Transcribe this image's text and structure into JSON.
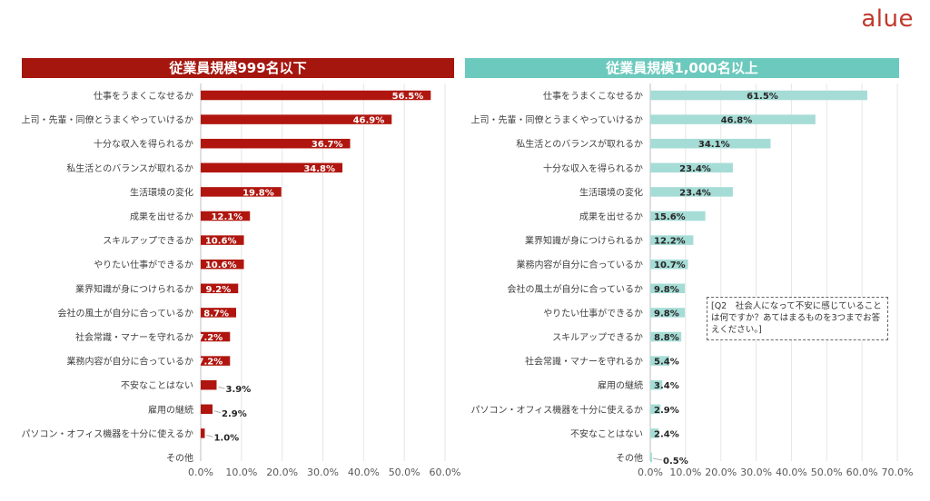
{
  "brand": {
    "logo_text": "alue",
    "color": "#c0392b"
  },
  "note": "[Q2　社会人になって不安に感じていることは何ですか？あてはまるものを3つまでお答えください。]",
  "chart_data": [
    {
      "type": "bar",
      "orientation": "horizontal",
      "title": "従業員規模999名以下",
      "title_color": "#a5160f",
      "bar_color": "#b0160f",
      "grid": true,
      "xlim": [
        0,
        60
      ],
      "ticks": [
        "0.0%",
        "10.0%",
        "20.0%",
        "30.0%",
        "40.0%",
        "50.0%",
        "60.0%"
      ],
      "categories": [
        "仕事をうまくこなせるか",
        "上司・先輩・同僚とうまくやっていけるか",
        "十分な収入を得られるか",
        "私生活とのバランスが取れるか",
        "生活環境の変化",
        "成果を出せるか",
        "スキルアップできるか",
        "やりたい仕事ができるか",
        "業界知識が身につけられるか",
        "会社の風土が自分に合っているか",
        "社会常識・マナーを守れるか",
        "業務内容が自分に合っているか",
        "不安なことはない",
        "雇用の継続",
        "パソコン・オフィス機器を十分に使えるか",
        "その他"
      ],
      "values": [
        56.5,
        46.9,
        36.7,
        34.8,
        19.8,
        12.1,
        10.6,
        10.6,
        9.2,
        8.7,
        7.2,
        7.2,
        3.9,
        2.9,
        1.0,
        null
      ],
      "labels": [
        "56.5%",
        "46.9%",
        "36.7%",
        "34.8%",
        "19.8%",
        "12.1%",
        "10.6%",
        "10.6%",
        "9.2%",
        "8.7%",
        "7.2%",
        "7.2%",
        "3.9%",
        "2.9%",
        "1.0%",
        ""
      ]
    },
    {
      "type": "bar",
      "orientation": "horizontal",
      "title": "従業員規模1,000名以上",
      "title_color": "#6cc9bd",
      "bar_color": "#a6dcd6",
      "grid": true,
      "xlim": [
        0,
        70
      ],
      "ticks": [
        "0.0%",
        "10.0%",
        "20.0%",
        "30.0%",
        "40.0%",
        "50.0%",
        "60.0%",
        "70.0%"
      ],
      "categories": [
        "仕事をうまくこなせるか",
        "上司・先輩・同僚とうまくやっていけるか",
        "私生活とのバランスが取れるか",
        "十分な収入を得られるか",
        "生活環境の変化",
        "成果を出せるか",
        "業界知識が身につけられるか",
        "業務内容が自分に合っているか",
        "会社の風土が自分に合っているか",
        "やりたい仕事ができるか",
        "スキルアップできるか",
        "社会常識・マナーを守れるか",
        "雇用の継続",
        "パソコン・オフィス機器を十分に使えるか",
        "不安なことはない",
        "その他"
      ],
      "values": [
        61.5,
        46.8,
        34.1,
        23.4,
        23.4,
        15.6,
        12.2,
        10.7,
        9.8,
        9.8,
        8.8,
        5.4,
        3.4,
        2.9,
        2.4,
        0.5
      ],
      "labels": [
        "61.5%",
        "46.8%",
        "34.1%",
        "23.4%",
        "23.4%",
        "15.6%",
        "12.2%",
        "10.7%",
        "9.8%",
        "9.8%",
        "8.8%",
        "5.4%",
        "3.4%",
        "2.9%",
        "2.4%",
        "0.5%"
      ]
    }
  ]
}
